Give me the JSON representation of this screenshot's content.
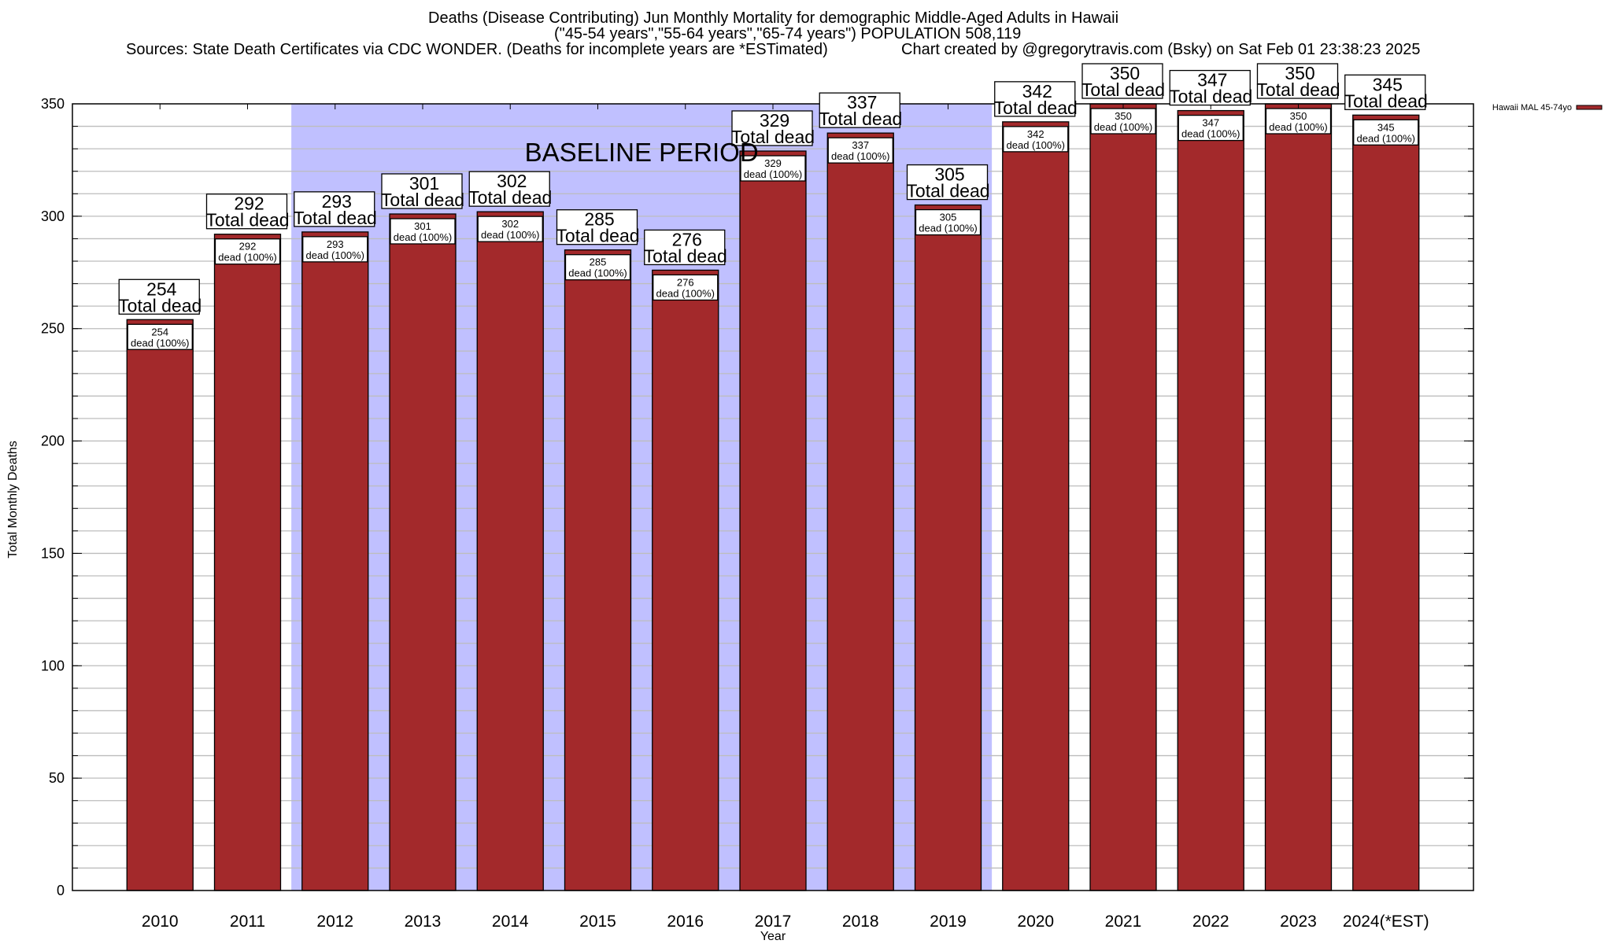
{
  "header": {
    "title_line1": "Deaths (Disease Contributing) Jun Monthly Mortality for demographic Middle-Aged Adults in Hawaii",
    "title_line2": "(\"45-54 years\",\"55-64 years\",\"65-74 years\") POPULATION 508,119",
    "sources": "Sources: State Death Certificates via CDC WONDER. (Deaths for incomplete years are *ESTimated)",
    "credit": "Chart created by @gregorytravis.com (Bsky) on Sat Feb 01 23:38:23 2025"
  },
  "chart_data": {
    "type": "bar",
    "title": "Deaths (Disease Contributing) Jun Monthly Mortality for demographic Middle-Aged Adults in Hawaii",
    "subtitle": "(\"45-54 years\",\"55-64 years\",\"65-74 years\") POPULATION 508,119",
    "xlabel": "Year",
    "ylabel": "Total Monthly Deaths",
    "ylim": [
      0,
      350
    ],
    "yticks": [
      0,
      50,
      100,
      150,
      200,
      250,
      300,
      350
    ],
    "minor_grid_step": 10,
    "grid": true,
    "legend_position": "top-right",
    "categories": [
      "2010",
      "2011",
      "2012",
      "2013",
      "2014",
      "2015",
      "2016",
      "2017",
      "2018",
      "2019",
      "2020",
      "2021",
      "2022",
      "2023",
      "2024(*EST)"
    ],
    "series": [
      {
        "name": "Hawaii MAL 45-74yo",
        "color": "#a3292b",
        "values": [
          254,
          292,
          293,
          301,
          302,
          285,
          276,
          329,
          337,
          305,
          342,
          350,
          347,
          350,
          345
        ]
      }
    ],
    "top_annotation_suffix": "Total dead",
    "inner_annotation_suffix": "dead (100%)",
    "shaded_region": {
      "label": "BASELINE PERIOD",
      "from_category": "2012",
      "to_category": "2019",
      "color": "#c0c0ff"
    }
  }
}
